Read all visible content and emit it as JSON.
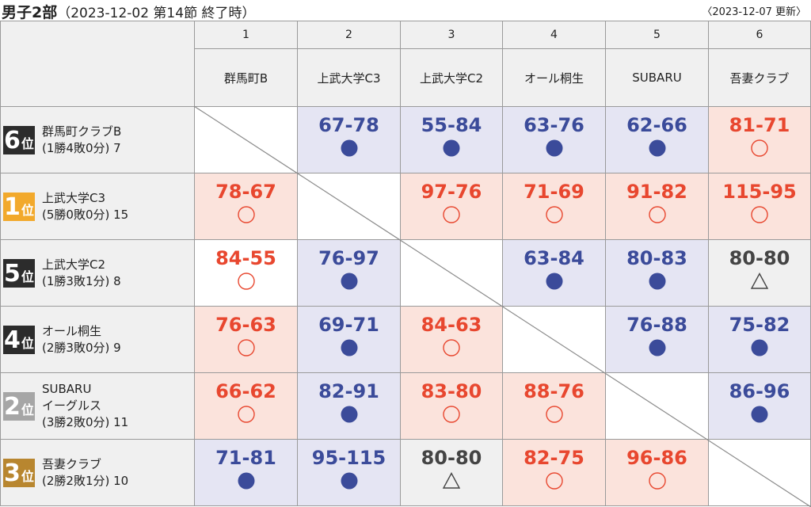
{
  "header": {
    "title_main": "男子2部",
    "title_sub": "（2023-12-02 第14節 終了時）",
    "updated": "〈2023-12-07 更新〉"
  },
  "columns": [
    {
      "num": "1",
      "name": "群馬町B"
    },
    {
      "num": "2",
      "name": "上武大学C3"
    },
    {
      "num": "3",
      "name": "上武大学C2"
    },
    {
      "num": "4",
      "name": "オール桐生"
    },
    {
      "num": "5",
      "name": "SUBARU"
    },
    {
      "num": "6",
      "name": "吾妻クラブ"
    }
  ],
  "colors": {
    "win": "#e8472f",
    "loss": "#3b4b9a",
    "draw": "#444444",
    "rank_gold": "#f2a92c",
    "rank_silver": "#a6a6a6",
    "rank_bronze": "#b8862f",
    "rank_other": "#2c2c2c"
  },
  "rows": [
    {
      "rank_num": "6",
      "rank_suffix": "位",
      "rank_style": "other",
      "name_lines": [
        "群馬町クラブB"
      ],
      "record": "(1勝4敗0分) 7",
      "cells": [
        {
          "type": "self"
        },
        {
          "type": "loss",
          "score": "67-78",
          "mark": "●"
        },
        {
          "type": "loss",
          "score": "55-84",
          "mark": "●"
        },
        {
          "type": "loss",
          "score": "63-76",
          "mark": "●"
        },
        {
          "type": "loss",
          "score": "62-66",
          "mark": "●"
        },
        {
          "type": "win",
          "score": "81-71",
          "mark": "○"
        }
      ]
    },
    {
      "rank_num": "1",
      "rank_suffix": "位",
      "rank_style": "gold",
      "name_lines": [
        "上武大学C3"
      ],
      "record": "(5勝0敗0分) 15",
      "cells": [
        {
          "type": "win",
          "score": "78-67",
          "mark": "○"
        },
        {
          "type": "self"
        },
        {
          "type": "win",
          "score": "97-76",
          "mark": "○"
        },
        {
          "type": "win",
          "score": "71-69",
          "mark": "○"
        },
        {
          "type": "win",
          "score": "91-82",
          "mark": "○"
        },
        {
          "type": "win",
          "score": "115-95",
          "mark": "○"
        }
      ]
    },
    {
      "rank_num": "5",
      "rank_suffix": "位",
      "rank_style": "other",
      "name_lines": [
        "上武大学C2"
      ],
      "record": "(1勝3敗1分) 8",
      "cells": [
        {
          "type": "win",
          "score": "84-55",
          "mark": "○",
          "plain": true
        },
        {
          "type": "loss",
          "score": "76-97",
          "mark": "●"
        },
        {
          "type": "self"
        },
        {
          "type": "loss",
          "score": "63-84",
          "mark": "●"
        },
        {
          "type": "loss",
          "score": "80-83",
          "mark": "●"
        },
        {
          "type": "draw",
          "score": "80-80",
          "mark": "△"
        }
      ]
    },
    {
      "rank_num": "4",
      "rank_suffix": "位",
      "rank_style": "other",
      "name_lines": [
        "オール桐生"
      ],
      "record": "(2勝3敗0分) 9",
      "cells": [
        {
          "type": "win",
          "score": "76-63",
          "mark": "○"
        },
        {
          "type": "loss",
          "score": "69-71",
          "mark": "●"
        },
        {
          "type": "win",
          "score": "84-63",
          "mark": "○"
        },
        {
          "type": "self"
        },
        {
          "type": "loss",
          "score": "76-88",
          "mark": "●"
        },
        {
          "type": "loss",
          "score": "75-82",
          "mark": "●"
        }
      ]
    },
    {
      "rank_num": "2",
      "rank_suffix": "位",
      "rank_style": "silver",
      "name_lines": [
        "SUBARU",
        "イーグルス"
      ],
      "record": "(3勝2敗0分) 11",
      "cells": [
        {
          "type": "win",
          "score": "66-62",
          "mark": "○"
        },
        {
          "type": "loss",
          "score": "82-91",
          "mark": "●"
        },
        {
          "type": "win",
          "score": "83-80",
          "mark": "○"
        },
        {
          "type": "win",
          "score": "88-76",
          "mark": "○"
        },
        {
          "type": "self"
        },
        {
          "type": "loss",
          "score": "86-96",
          "mark": "●"
        }
      ]
    },
    {
      "rank_num": "3",
      "rank_suffix": "位",
      "rank_style": "bronze",
      "name_lines": [
        "吾妻クラブ"
      ],
      "record": "(2勝2敗1分) 10",
      "cells": [
        {
          "type": "loss",
          "score": "71-81",
          "mark": "●"
        },
        {
          "type": "loss",
          "score": "95-115",
          "mark": "●"
        },
        {
          "type": "draw",
          "score": "80-80",
          "mark": "△"
        },
        {
          "type": "win",
          "score": "82-75",
          "mark": "○"
        },
        {
          "type": "win",
          "score": "96-86",
          "mark": "○"
        },
        {
          "type": "self"
        }
      ]
    }
  ]
}
